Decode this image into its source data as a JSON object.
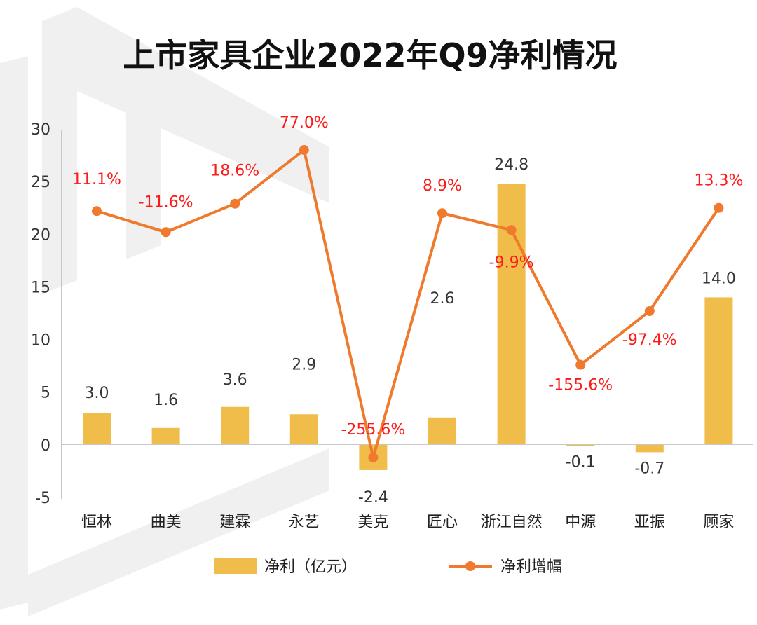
{
  "chart_data": {
    "type": "bar",
    "title": "上市家具企业2022年Q9净利情况",
    "categories": [
      "恒林",
      "曲美",
      "建霖",
      "永艺",
      "美克",
      "匠心",
      "浙江自然",
      "中源",
      "亚振",
      "顾家"
    ],
    "ylim": [
      -5,
      30
    ],
    "yticks": [
      -5,
      0,
      5,
      10,
      15,
      20,
      25,
      30
    ],
    "grid": false,
    "legend_position": "bottom",
    "series": [
      {
        "name": "净利（亿元）",
        "type": "bar",
        "values": [
          3.0,
          1.6,
          3.6,
          2.9,
          -2.4,
          2.6,
          24.8,
          -0.1,
          -0.7,
          14.0
        ],
        "labels": [
          "3.0",
          "1.6",
          "3.6",
          "2.9",
          "-2.4",
          "2.6",
          "24.8",
          "-0.1",
          "-0.7",
          "14.0"
        ],
        "color": "#f0bc4a"
      },
      {
        "name": "净利增幅",
        "type": "line",
        "plotted_on_left_axis": [
          22.2,
          20.2,
          22.9,
          28.0,
          -1.2,
          22.0,
          20.4,
          7.6,
          12.7,
          22.5
        ],
        "values_percent": [
          11.1,
          -11.6,
          18.6,
          77.0,
          -255.6,
          8.9,
          -9.9,
          -155.6,
          -97.4,
          13.3
        ],
        "labels": [
          "11.1%",
          "-11.6%",
          "18.6%",
          "77.0%",
          "-255.6%",
          "8.9%",
          "-9.9%",
          "-155.6%",
          "-97.4%",
          "13.3%"
        ],
        "color": "#ef7a2d",
        "label_color": "#ff1a1a"
      }
    ]
  }
}
